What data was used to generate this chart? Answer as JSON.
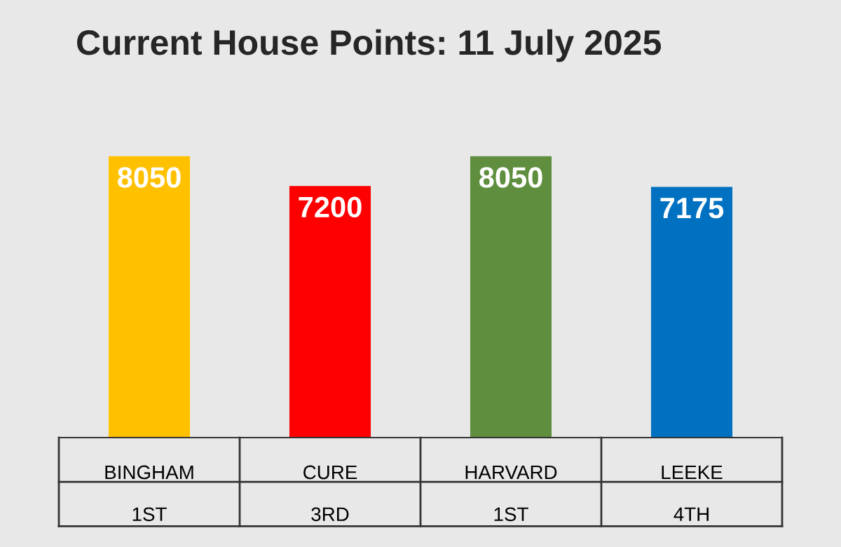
{
  "chart_data": {
    "type": "bar",
    "title": "Current House Points: 11 July 2025",
    "categories": [
      "BINGHAM\n\n1ST",
      "CURE\n\n3RD",
      "HARVARD\n\n1ST",
      "LEEKE\n\n4TH"
    ],
    "values": [
      8050,
      7200,
      8050,
      7175
    ],
    "colors": [
      "#ffc000",
      "#ff0000",
      "#5f8f3e",
      "#0070c0"
    ],
    "tick_labels": "x",
    "data_labels": true,
    "grid": false,
    "legend": false
  }
}
